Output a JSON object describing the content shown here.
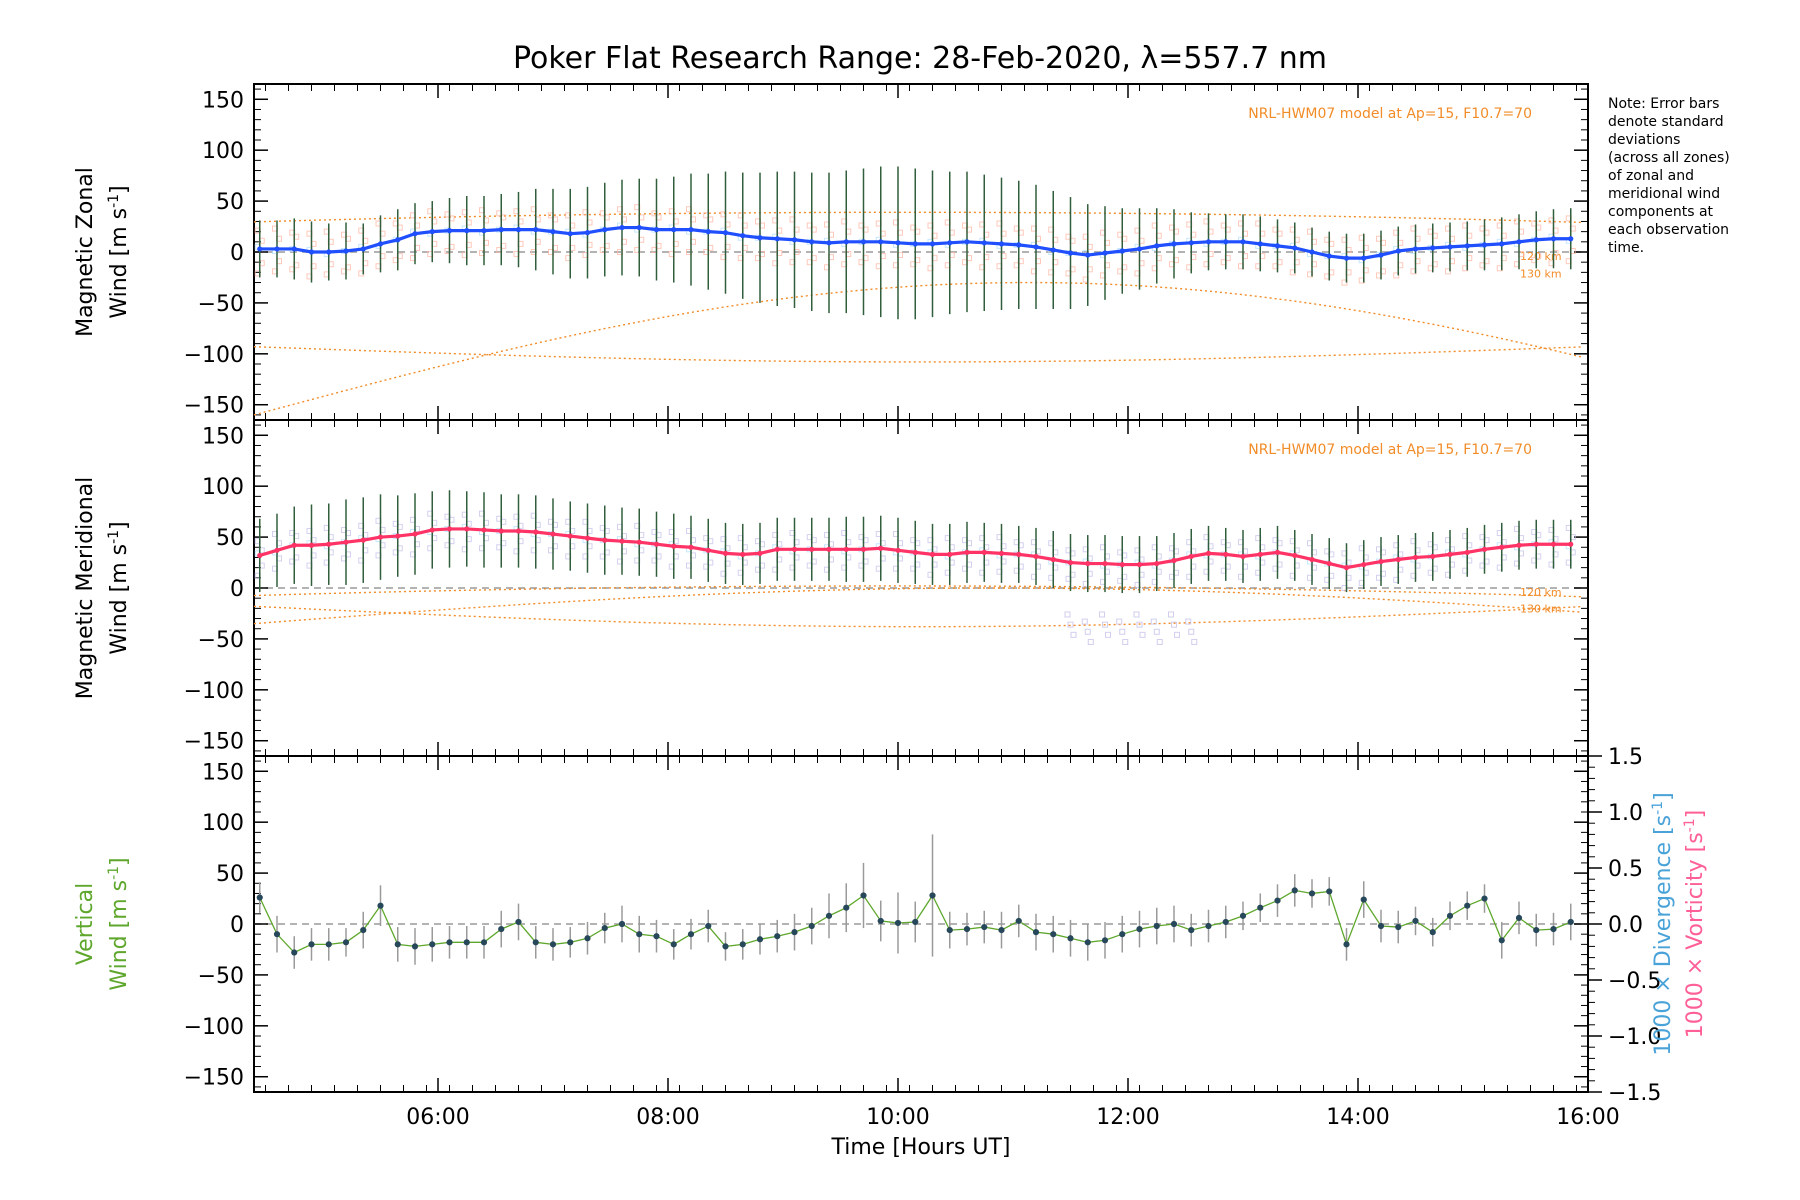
{
  "title": "Poker Flat Research Range: 28-Feb-2020, λ=557.7 nm",
  "note_lines": [
    "Note: Error bars",
    "denote standard",
    "deviations",
    "(across all zones)",
    "of zonal and",
    "meridional wind",
    "components at",
    "each observation",
    "time."
  ],
  "model_label": "NRL-HWM07 model at Ap=15, F10.7=70",
  "model_heights": [
    "120 km",
    "130 km"
  ],
  "colors": {
    "zonal": "#1f4fff",
    "meridional": "#ff3366",
    "vertical": "#5ea72c",
    "divergence": "#4aa3d8",
    "vorticity": "#ff5f97",
    "model": "#f28c28",
    "errorbar": "#315f3d",
    "vertical_error": "#9a9a9a",
    "zonal_samples": "#ffb7a6",
    "meridional_samples": "#c5c2ea"
  },
  "chart_data": [
    {
      "type": "line",
      "xlabel": "",
      "ylabel_line1": "Magnetic Zonal",
      "ylabel_line2": "Wind [m s-1]",
      "ylim": [
        -165,
        165
      ],
      "xlim": [
        4.4,
        16.0
      ],
      "y_ticks": [
        -150,
        -100,
        -50,
        0,
        50,
        100,
        150
      ],
      "series": [
        {
          "x": [
            4.45,
            4.6,
            4.75,
            4.9,
            5.05,
            5.2,
            5.35,
            5.5,
            5.65,
            5.8,
            5.95,
            6.1,
            6.25,
            6.4,
            6.55,
            6.7,
            6.85,
            7.0,
            7.15,
            7.3,
            7.45,
            7.6,
            7.75,
            7.9,
            8.05,
            8.2,
            8.35,
            8.5,
            8.65,
            8.8,
            8.95,
            9.1,
            9.25,
            9.4,
            9.55,
            9.7,
            9.85,
            10.0,
            10.15,
            10.3,
            10.45,
            10.6,
            10.75,
            10.9,
            11.05,
            11.2,
            11.35,
            11.5,
            11.65,
            11.8,
            11.95,
            12.1,
            12.25,
            12.4,
            12.55,
            12.7,
            12.85,
            13.0,
            13.15,
            13.3,
            13.45,
            13.6,
            13.75,
            13.9,
            14.05,
            14.2,
            14.35,
            14.5,
            14.65,
            14.8,
            14.95,
            15.1,
            15.25,
            15.4,
            15.55,
            15.7,
            15.85
          ],
          "values": [
            3,
            3,
            3,
            0,
            0,
            1,
            3,
            8,
            12,
            18,
            20,
            21,
            21,
            21,
            22,
            22,
            22,
            20,
            18,
            19,
            22,
            24,
            24,
            22,
            22,
            22,
            20,
            19,
            16,
            14,
            13,
            12,
            10,
            9,
            10,
            10,
            10,
            9,
            8,
            8,
            9,
            10,
            9,
            8,
            7,
            5,
            2,
            -1,
            -3,
            -1,
            1,
            3,
            6,
            8,
            9,
            10,
            10,
            10,
            8,
            6,
            4,
            0,
            -4,
            -6,
            -6,
            -3,
            1,
            3,
            4,
            5,
            6,
            7,
            8,
            10,
            12,
            13,
            13
          ],
          "errors": [
            28,
            28,
            30,
            30,
            28,
            28,
            25,
            28,
            30,
            30,
            30,
            32,
            34,
            34,
            35,
            37,
            40,
            42,
            44,
            45,
            46,
            47,
            48,
            50,
            52,
            55,
            57,
            60,
            62,
            64,
            66,
            67,
            68,
            69,
            70,
            72,
            74,
            75,
            74,
            72,
            70,
            69,
            67,
            65,
            63,
            61,
            58,
            55,
            50,
            46,
            42,
            40,
            37,
            34,
            30,
            28,
            27,
            27,
            27,
            26,
            25,
            24,
            24,
            24,
            24,
            24,
            24,
            24,
            24,
            24,
            24,
            25,
            26,
            27,
            28,
            29,
            30
          ]
        }
      ]
    },
    {
      "type": "line",
      "xlabel": "",
      "ylabel_line1": "Magnetic Meridional",
      "ylabel_line2": "Wind [m s-1]",
      "ylim": [
        -165,
        165
      ],
      "xlim": [
        4.4,
        16.0
      ],
      "y_ticks": [
        -150,
        -100,
        -50,
        0,
        50,
        100,
        150
      ],
      "series": [
        {
          "x": [
            4.45,
            4.6,
            4.75,
            4.9,
            5.05,
            5.2,
            5.35,
            5.5,
            5.65,
            5.8,
            5.95,
            6.1,
            6.25,
            6.4,
            6.55,
            6.7,
            6.85,
            7.0,
            7.15,
            7.3,
            7.45,
            7.6,
            7.75,
            7.9,
            8.05,
            8.2,
            8.35,
            8.5,
            8.65,
            8.8,
            8.95,
            9.1,
            9.25,
            9.4,
            9.55,
            9.7,
            9.85,
            10.0,
            10.15,
            10.3,
            10.45,
            10.6,
            10.75,
            10.9,
            11.05,
            11.2,
            11.35,
            11.5,
            11.65,
            11.8,
            11.95,
            12.1,
            12.25,
            12.4,
            12.55,
            12.7,
            12.85,
            13.0,
            13.15,
            13.3,
            13.45,
            13.6,
            13.75,
            13.9,
            14.05,
            14.2,
            14.35,
            14.5,
            14.65,
            14.8,
            14.95,
            15.1,
            15.25,
            15.4,
            15.55,
            15.7,
            15.85
          ],
          "values": [
            32,
            37,
            42,
            42,
            43,
            45,
            47,
            50,
            51,
            53,
            57,
            58,
            58,
            57,
            56,
            56,
            55,
            53,
            51,
            49,
            47,
            46,
            45,
            43,
            41,
            40,
            37,
            34,
            33,
            34,
            38,
            38,
            38,
            38,
            38,
            38,
            39,
            37,
            35,
            33,
            33,
            35,
            35,
            34,
            33,
            31,
            28,
            25,
            24,
            24,
            23,
            23,
            24,
            27,
            31,
            34,
            33,
            31,
            33,
            35,
            32,
            28,
            24,
            20,
            23,
            26,
            28,
            30,
            31,
            33,
            35,
            38,
            40,
            42,
            43,
            43,
            43
          ],
          "errors": [
            36,
            36,
            38,
            40,
            40,
            42,
            42,
            42,
            40,
            40,
            38,
            38,
            37,
            37,
            36,
            36,
            36,
            35,
            34,
            34,
            34,
            33,
            33,
            32,
            32,
            31,
            31,
            30,
            30,
            30,
            31,
            31,
            31,
            31,
            32,
            32,
            32,
            32,
            31,
            30,
            30,
            30,
            29,
            29,
            28,
            28,
            28,
            28,
            28,
            28,
            28,
            28,
            27,
            27,
            27,
            27,
            26,
            26,
            26,
            26,
            25,
            25,
            25,
            24,
            24,
            24,
            24,
            24,
            24,
            24,
            24,
            24,
            24,
            24,
            24,
            24,
            24
          ]
        }
      ]
    },
    {
      "type": "line",
      "xlabel": "Time [Hours UT]",
      "ylabel_line1": "Vertical",
      "ylabel_line2": "Wind [m s-1]",
      "right_label_1": "1000 × Divergence [s-1]",
      "right_label_2": "1000 × Vorticity [s-1]",
      "ylim": [
        -165,
        165
      ],
      "xlim": [
        4.4,
        16.0
      ],
      "y_ticks": [
        -150,
        -100,
        -50,
        0,
        50,
        100,
        150
      ],
      "right_ylim": [
        -1.5,
        1.5
      ],
      "right_ticks": [
        -1.5,
        -1.0,
        -0.5,
        0.0,
        0.5,
        1.0,
        1.5
      ],
      "x_tick_values": [
        6,
        8,
        10,
        12,
        14,
        16
      ],
      "x_tick_labels": [
        "06:00",
        "08:00",
        "10:00",
        "12:00",
        "14:00",
        "16:00"
      ],
      "series": [
        {
          "x": [
            4.45,
            4.6,
            4.75,
            4.9,
            5.05,
            5.2,
            5.35,
            5.5,
            5.65,
            5.8,
            5.95,
            6.1,
            6.25,
            6.4,
            6.55,
            6.7,
            6.85,
            7.0,
            7.15,
            7.3,
            7.45,
            7.6,
            7.75,
            7.9,
            8.05,
            8.2,
            8.35,
            8.5,
            8.65,
            8.8,
            8.95,
            9.1,
            9.25,
            9.4,
            9.55,
            9.7,
            9.85,
            10.0,
            10.15,
            10.3,
            10.45,
            10.6,
            10.75,
            10.9,
            11.05,
            11.2,
            11.35,
            11.5,
            11.65,
            11.8,
            11.95,
            12.1,
            12.25,
            12.4,
            12.55,
            12.7,
            12.85,
            13.0,
            13.15,
            13.3,
            13.45,
            13.6,
            13.75,
            13.9,
            14.05,
            14.2,
            14.35,
            14.5,
            14.65,
            14.8,
            14.95,
            15.1,
            15.25,
            15.4,
            15.55,
            15.7,
            15.85
          ],
          "values": [
            26,
            -10,
            -28,
            -20,
            -20,
            -18,
            -6,
            18,
            -20,
            -22,
            -20,
            -18,
            -18,
            -18,
            -5,
            2,
            -18,
            -20,
            -18,
            -14,
            -4,
            0,
            -10,
            -12,
            -20,
            -10,
            -2,
            -22,
            -20,
            -15,
            -12,
            -8,
            -2,
            8,
            16,
            28,
            3,
            1,
            2,
            28,
            -6,
            -5,
            -3,
            -6,
            3,
            -8,
            -10,
            -14,
            -18,
            -16,
            -10,
            -5,
            -2,
            0,
            -6,
            -2,
            2,
            8,
            16,
            23,
            33,
            30,
            32,
            -20,
            24,
            -2,
            -3,
            3,
            -8,
            8,
            18,
            25,
            -16,
            6,
            -6,
            -5,
            2
          ],
          "errors": [
            15,
            18,
            16,
            16,
            16,
            14,
            18,
            20,
            17,
            18,
            17,
            16,
            16,
            16,
            18,
            18,
            16,
            16,
            15,
            16,
            15,
            18,
            18,
            16,
            15,
            15,
            16,
            14,
            15,
            15,
            16,
            18,
            18,
            22,
            24,
            32,
            20,
            30,
            20,
            60,
            18,
            16,
            16,
            18,
            16,
            18,
            18,
            18,
            18,
            18,
            18,
            18,
            18,
            18,
            16,
            16,
            16,
            14,
            14,
            16,
            16,
            14,
            14,
            16,
            18,
            16,
            16,
            14,
            14,
            14,
            14,
            14,
            18,
            16,
            16,
            16,
            18
          ]
        }
      ]
    }
  ]
}
